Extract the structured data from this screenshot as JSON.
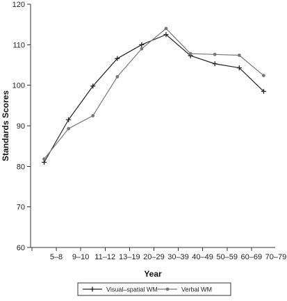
{
  "chart_data": {
    "type": "line",
    "xlabel": "Year",
    "ylabel": "Standards Scores",
    "ylim": [
      60,
      120
    ],
    "yticks": [
      60,
      70,
      80,
      90,
      100,
      110,
      120
    ],
    "x_tick_labels": [
      "5–8",
      "9–10",
      "11–12",
      "13–19",
      "20–29",
      "30–39",
      "40–49",
      "50–59",
      "60–69",
      "70–79"
    ],
    "legend_position": "bottom-center",
    "grid": false,
    "series": [
      {
        "name": "Visual–spatial WM",
        "marker": "plus",
        "color": "#222222",
        "values": [
          81.0,
          91.5,
          99.8,
          106.6,
          110.0,
          112.5,
          107.3,
          105.3,
          104.3,
          98.5
        ]
      },
      {
        "name": "Verbal WM",
        "marker": "circle",
        "color": "#777777",
        "values": [
          81.8,
          89.3,
          92.5,
          102.1,
          109.0,
          114.0,
          107.8,
          107.6,
          107.4,
          102.4
        ]
      }
    ]
  }
}
